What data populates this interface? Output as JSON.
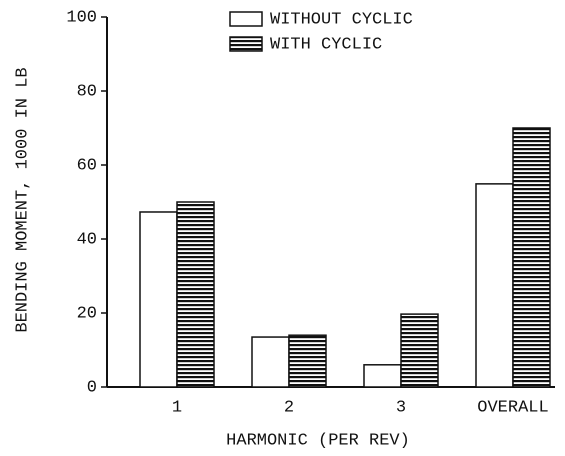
{
  "chart_data": {
    "type": "bar",
    "ylabel": "BENDING MOMENT, 1000 IN LB",
    "xlabel": "HARMONIC (PER REV)",
    "categories": [
      "1",
      "2",
      "3",
      "OVERALL"
    ],
    "series": [
      {
        "name": "WITHOUT CYCLIC",
        "color": "#ffffff",
        "pattern": "none",
        "values": [
          47.3,
          13.5,
          6,
          54.9
        ]
      },
      {
        "name": "WITH CYCLIC",
        "color": "#ffffff",
        "pattern": "horizontal-lines",
        "values": [
          50,
          14,
          19.7,
          70
        ]
      }
    ],
    "ylim": [
      0,
      100
    ],
    "yticks": [
      0,
      20,
      40,
      60,
      80,
      100
    ],
    "grid": false,
    "legend": "top"
  }
}
